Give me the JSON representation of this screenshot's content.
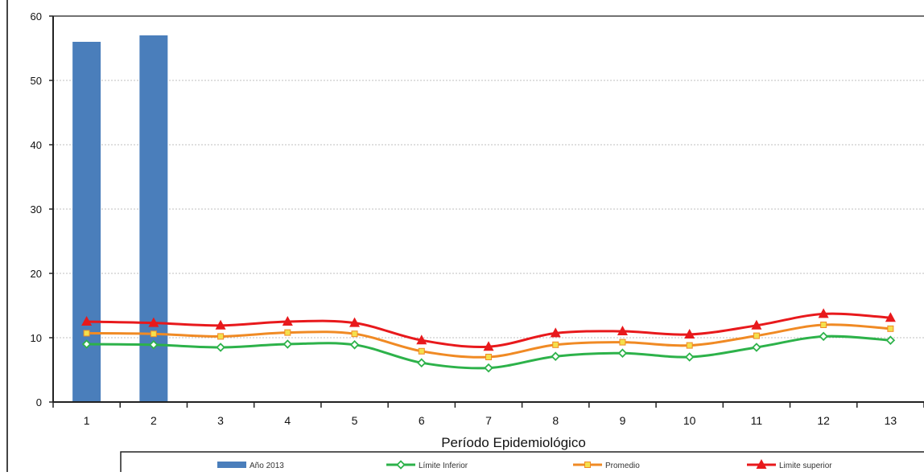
{
  "chart_data": {
    "type": "bar",
    "xlabel": "Período Epidemiológico",
    "ylabel": "",
    "title": "",
    "ylim": [
      0,
      60
    ],
    "yticks": [
      0,
      10,
      20,
      30,
      40,
      50,
      60
    ],
    "grid": true,
    "legend_position": "bottom",
    "categories": [
      "1",
      "2",
      "3",
      "4",
      "5",
      "6",
      "7",
      "8",
      "9",
      "10",
      "11",
      "12",
      "13"
    ],
    "series": [
      {
        "name": "Año 2013",
        "kind": "bar",
        "color": "#4a7ebb",
        "values": [
          56,
          57,
          null,
          null,
          null,
          null,
          null,
          null,
          null,
          null,
          null,
          null,
          null
        ]
      },
      {
        "name": "Límite Inferior",
        "kind": "line",
        "color": "#2db24a",
        "marker": "diamond",
        "values": [
          9.0,
          8.9,
          8.5,
          9.0,
          8.9,
          6.1,
          5.3,
          7.1,
          7.6,
          7.0,
          8.5,
          10.2,
          9.6
        ]
      },
      {
        "name": "Promedio",
        "kind": "line",
        "color": "#f08a24",
        "marker": "square",
        "values": [
          10.7,
          10.6,
          10.2,
          10.8,
          10.6,
          7.9,
          7.0,
          8.9,
          9.3,
          8.8,
          10.3,
          12.0,
          11.4
        ]
      },
      {
        "name": "Limite superior",
        "kind": "line",
        "color": "#e8191c",
        "marker": "triangle",
        "values": [
          12.5,
          12.3,
          11.9,
          12.5,
          12.3,
          9.6,
          8.6,
          10.7,
          11.0,
          10.5,
          11.9,
          13.7,
          13.1
        ]
      }
    ]
  }
}
